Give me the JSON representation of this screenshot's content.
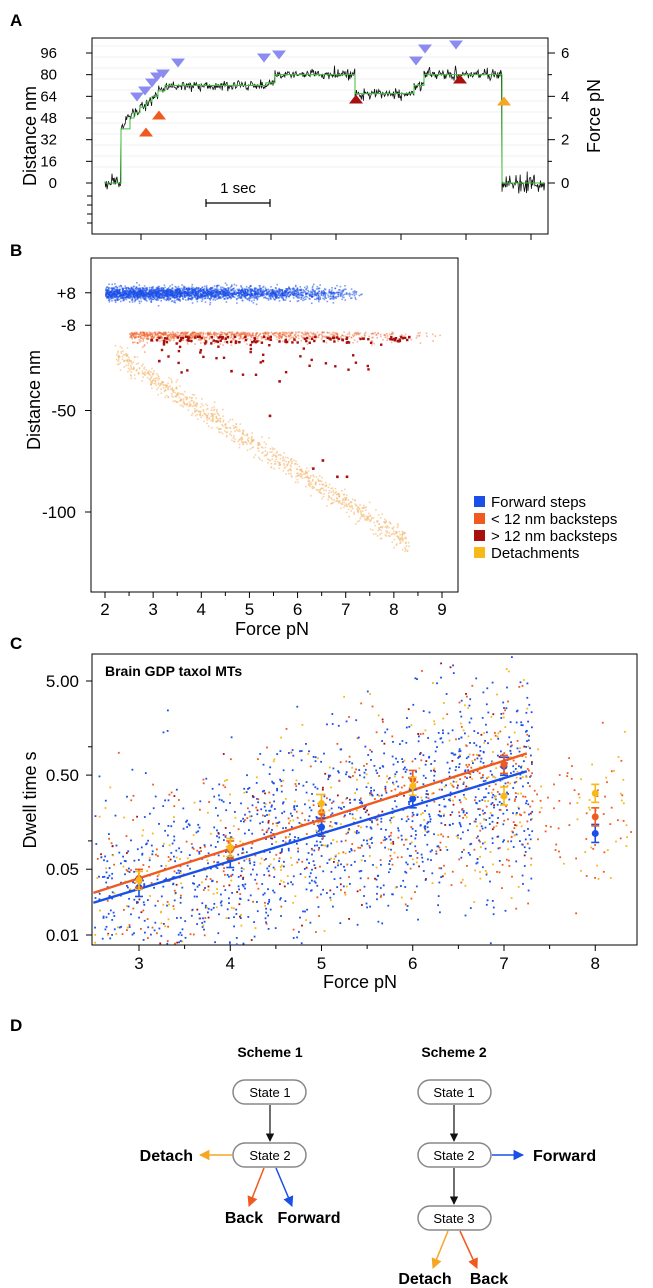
{
  "panels": {
    "A": {
      "letter": "A",
      "ylabel_left": "Distance nm",
      "ylabel_right": "Force pN",
      "left_ticks": [
        "96",
        "80",
        "64",
        "48",
        "32",
        "16",
        "0"
      ],
      "right_ticks": [
        "6",
        "4",
        "2",
        "0"
      ],
      "scalebar_label": "1 sec"
    },
    "B": {
      "letter": "B",
      "ylabel": "Distance nm",
      "xlabel": "Force pN",
      "y_ticks": [
        "+8",
        "-8",
        "-50",
        "-100"
      ],
      "x_ticks": [
        "2",
        "3",
        "4",
        "5",
        "6",
        "7",
        "8",
        "9"
      ]
    },
    "C": {
      "letter": "C",
      "title": "Brain GDP taxol MTs",
      "ylabel": "Dwell time  s",
      "xlabel": "Force pN",
      "y_ticks": [
        "5.00",
        "0.50",
        "0.05",
        "0.01"
      ],
      "x_ticks": [
        "3",
        "4",
        "5",
        "6",
        "7",
        "8"
      ]
    },
    "D": {
      "letter": "D",
      "scheme1": {
        "title": "Scheme 1",
        "states": [
          "State 1",
          "State 2"
        ],
        "detach": "Detach",
        "back": "Back",
        "forward": "Forward"
      },
      "scheme2": {
        "title": "Scheme 2",
        "states": [
          "State 1",
          "State 2",
          "State 3"
        ],
        "forward": "Forward",
        "detach": "Detach",
        "back": "Back"
      }
    }
  },
  "legend": [
    {
      "label": "Forward steps",
      "color": "#1a4fe8"
    },
    {
      "label": "< 12 nm backsteps",
      "color": "#f05a1e"
    },
    {
      "label": "> 12 nm backsteps",
      "color": "#a80f0f"
    },
    {
      "label": "Detachments",
      "color": "#f8b818"
    }
  ],
  "colors": {
    "forward": "#1a4fe8",
    "small_back": "#f05a1e",
    "large_back": "#a80f0f",
    "detach": "#f8b818",
    "detach_fill": "#f5a623",
    "step_marker": "#8c8cf0",
    "trace": "#111111",
    "fit_trace": "#3cbf3c",
    "fit_forward": "#1a4fe8",
    "fit_back": "#f05a1e"
  },
  "chart_data": [
    {
      "panel": "A",
      "type": "line",
      "title": "",
      "ylabel": "Distance nm",
      "y2label": "Force pN",
      "yticks": [
        96,
        80,
        64,
        48,
        32,
        16,
        0
      ],
      "y2ticks": [
        6,
        4,
        2,
        0
      ],
      "scalebar_seconds": 1,
      "step_levels_nm": [
        0,
        56,
        64,
        72,
        80,
        88
      ],
      "step_events": {
        "forward_markers": 12,
        "small_backstep_markers": 2,
        "large_backstep_markers": 2,
        "detach_markers": 1
      }
    },
    {
      "panel": "B",
      "type": "scatter",
      "xlabel": "Force pN",
      "ylabel": "Distance nm",
      "xlim": [
        1.7,
        9.3
      ],
      "ylim": [
        -130,
        20
      ],
      "xticks": [
        2,
        3,
        4,
        5,
        6,
        7,
        8,
        9
      ],
      "yticks": [
        8,
        -8,
        -50,
        -100
      ],
      "ytick_labels": [
        "+8",
        "-8",
        "-50",
        "-100"
      ],
      "series": [
        {
          "name": "Forward steps",
          "x_range": [
            2.0,
            7.5
          ],
          "y_center": 8
        },
        {
          "name": "< 12 nm backsteps",
          "x_range": [
            2.5,
            9.0
          ],
          "y_center": -8
        },
        {
          "name": "> 12 nm backsteps",
          "x_range": [
            2.9,
            8.3
          ],
          "y_center": -12,
          "outliers": [
            [
              4.6,
              -30
            ],
            [
              5.4,
              -52
            ],
            [
              6.3,
              -78
            ],
            [
              6.5,
              -74
            ],
            [
              6.8,
              -82
            ],
            [
              7.0,
              -82
            ],
            [
              5.6,
              -35
            ],
            [
              3.1,
              -25
            ]
          ]
        },
        {
          "name": "Detachments",
          "x": [
            2.2,
            3.0,
            4.0,
            5.0,
            6.0,
            7.0,
            8.2
          ],
          "y": [
            -22,
            -38,
            -53,
            -67,
            -81,
            -97,
            -115
          ]
        }
      ]
    },
    {
      "panel": "C",
      "type": "scatter",
      "title": "Brain GDP taxol MTs",
      "xlabel": "Force pN",
      "ylabel": "Dwell time  s",
      "log_y": true,
      "xlim": [
        2.5,
        8.5
      ],
      "ylim": [
        0.008,
        8
      ],
      "xticks": [
        3,
        4,
        5,
        6,
        7,
        8
      ],
      "yticks": [
        5.0,
        0.5,
        0.05,
        0.01
      ],
      "binned_means": [
        {
          "name": "Forward steps",
          "x": [
            3,
            4,
            5,
            6,
            7,
            8
          ],
          "y": [
            0.032,
            0.065,
            0.14,
            0.28,
            0.62,
            0.12
          ]
        },
        {
          "name": "< 12 nm backsteps",
          "x": [
            3,
            4,
            5,
            6,
            7,
            8
          ],
          "y": [
            0.04,
            0.08,
            0.2,
            0.45,
            0.65,
            0.18
          ]
        },
        {
          "name": "Detachments",
          "x": [
            3,
            4,
            5,
            6,
            7,
            8
          ],
          "y": [
            0.038,
            0.085,
            0.25,
            0.38,
            0.3,
            0.32
          ]
        }
      ],
      "fits": [
        {
          "name": "Forward steps",
          "x": [
            2.5,
            7.25
          ],
          "y": [
            0.022,
            0.55
          ]
        },
        {
          "name": "< 12 nm backsteps",
          "x": [
            2.5,
            7.25
          ],
          "y": [
            0.028,
            0.85
          ]
        }
      ]
    }
  ]
}
